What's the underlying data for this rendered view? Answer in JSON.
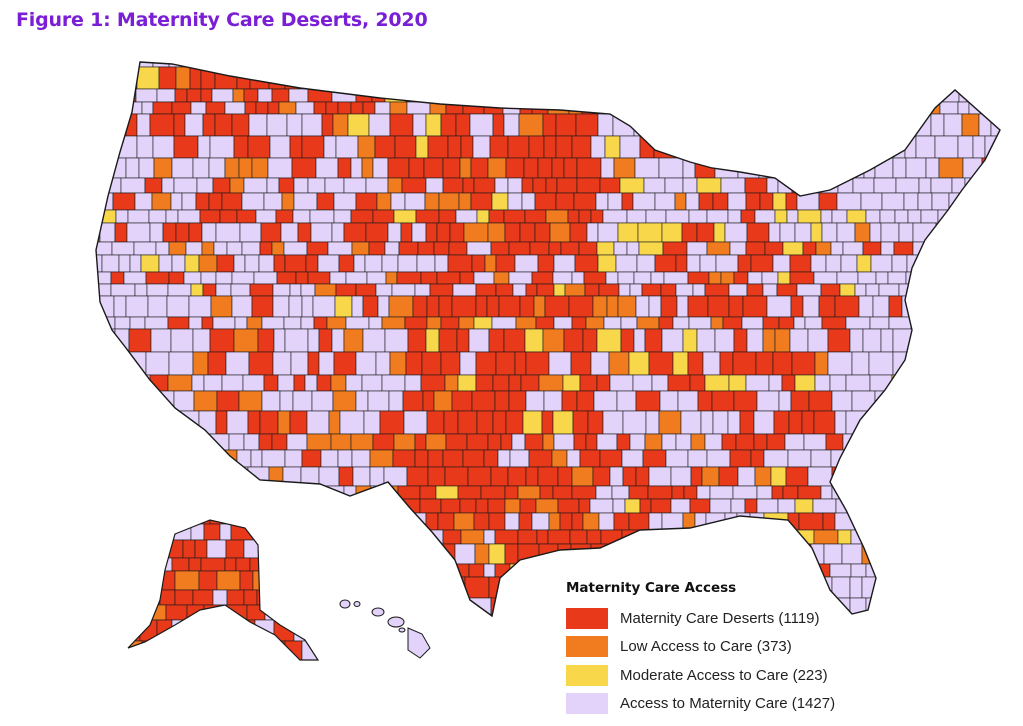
{
  "figure": {
    "title": "Figure 1: Maternity Care Deserts, 2020"
  },
  "legend": {
    "title": "Maternity Care Access",
    "items": [
      {
        "key": "desert",
        "label": "Maternity Care Deserts (1119)",
        "color": "#e8391a"
      },
      {
        "key": "low",
        "label": "Low Access to Care (373)",
        "color": "#f07c1f"
      },
      {
        "key": "moderate",
        "label": "Moderate Access to Care (223)",
        "color": "#f8d84a"
      },
      {
        "key": "access",
        "label": "Access to Maternity Care (1427)",
        "color": "#e3d3fb"
      }
    ]
  },
  "map": {
    "region": "United States counties",
    "insets": [
      "alaska",
      "hawaii"
    ],
    "county_outline_color": "#1a1a1a"
  }
}
